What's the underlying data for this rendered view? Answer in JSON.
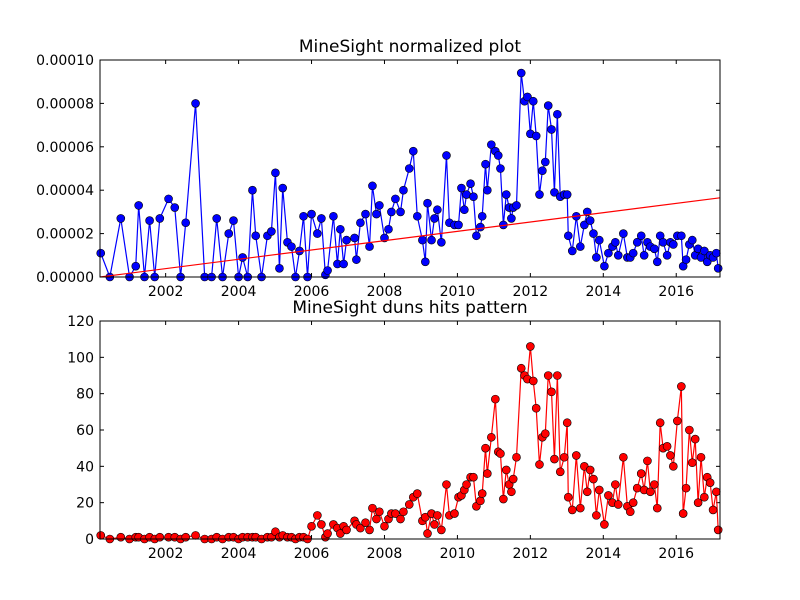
{
  "chart_data": [
    {
      "type": "line",
      "title": "MineSight normalized plot",
      "xlim": [
        2000.2,
        2017.2
      ],
      "xticks": [
        2002,
        2004,
        2006,
        2008,
        2010,
        2012,
        2014,
        2016
      ],
      "ylim": [
        0,
        0.0001
      ],
      "yticks": [
        {
          "value": 0,
          "label": "0.00000"
        },
        {
          "value": 2e-05,
          "label": "0.00002"
        },
        {
          "value": 4e-05,
          "label": "0.00004"
        },
        {
          "value": 6e-05,
          "label": "0.00006"
        },
        {
          "value": 8e-05,
          "label": "0.00008"
        },
        {
          "value": 0.0001,
          "label": "0.00010"
        }
      ],
      "x": [
        2000.22,
        2000.47,
        2000.77,
        2001.01,
        2001.18,
        2001.26,
        2001.42,
        2001.56,
        2001.7,
        2001.84,
        2002.08,
        2002.25,
        2002.41,
        2002.55,
        2002.82,
        2003.07,
        2003.26,
        2003.4,
        2003.56,
        2003.73,
        2003.86,
        2004.0,
        2004.11,
        2004.25,
        2004.38,
        2004.47,
        2004.63,
        2004.79,
        2004.9,
        2005.01,
        2005.12,
        2005.21,
        2005.34,
        2005.45,
        2005.56,
        2005.67,
        2005.78,
        2005.89,
        2006.0,
        2006.16,
        2006.27,
        2006.38,
        2006.44,
        2006.6,
        2006.71,
        2006.79,
        2006.88,
        2006.96,
        2007.18,
        2007.23,
        2007.34,
        2007.48,
        2007.59,
        2007.67,
        2007.78,
        2007.86,
        2008.0,
        2008.11,
        2008.19,
        2008.3,
        2008.44,
        2008.52,
        2008.68,
        2008.79,
        2008.9,
        2009.04,
        2009.12,
        2009.18,
        2009.29,
        2009.37,
        2009.45,
        2009.56,
        2009.7,
        2009.78,
        2009.92,
        2010.03,
        2010.11,
        2010.19,
        2010.25,
        2010.36,
        2010.44,
        2010.52,
        2010.63,
        2010.68,
        2010.77,
        2010.82,
        2010.93,
        2011.04,
        2011.12,
        2011.18,
        2011.26,
        2011.34,
        2011.42,
        2011.48,
        2011.53,
        2011.62,
        2011.75,
        2011.84,
        2011.92,
        2012.0,
        2012.08,
        2012.16,
        2012.25,
        2012.33,
        2012.41,
        2012.49,
        2012.58,
        2012.66,
        2012.74,
        2012.82,
        2012.93,
        2013.01,
        2013.04,
        2013.15,
        2013.26,
        2013.37,
        2013.48,
        2013.56,
        2013.64,
        2013.73,
        2013.81,
        2013.89,
        2014.03,
        2014.14,
        2014.25,
        2014.33,
        2014.41,
        2014.55,
        2014.66,
        2014.74,
        2014.82,
        2014.93,
        2015.04,
        2015.12,
        2015.21,
        2015.29,
        2015.4,
        2015.48,
        2015.56,
        2015.64,
        2015.75,
        2015.84,
        2015.92,
        2016.03,
        2016.14,
        2016.19,
        2016.27,
        2016.36,
        2016.44,
        2016.52,
        2016.6,
        2016.68,
        2016.77,
        2016.85,
        2016.93,
        2017.01,
        2017.1,
        2017.15
      ],
      "series": [
        {
          "color": "#0000ff",
          "markers": true,
          "values": [
            1.1e-05,
            0,
            2.7e-05,
            0,
            5e-06,
            3.3e-05,
            0,
            2.6e-05,
            0,
            2.7e-05,
            3.6e-05,
            3.2e-05,
            0,
            2.5e-05,
            8e-05,
            0,
            0,
            2.7e-05,
            0,
            2e-05,
            2.6e-05,
            0,
            9e-06,
            0,
            4e-05,
            1.9e-05,
            0,
            1.9e-05,
            2.1e-05,
            4.8e-05,
            4e-06,
            4.1e-05,
            1.6e-05,
            1.4e-05,
            0,
            1.2e-05,
            2.8e-05,
            0,
            2.9e-05,
            2e-05,
            2.7e-05,
            1e-06,
            3e-06,
            2.8e-05,
            6e-06,
            2.2e-05,
            6e-06,
            1.7e-05,
            1.8e-05,
            8e-06,
            2.5e-05,
            2.9e-05,
            1.4e-05,
            4.2e-05,
            2.9e-05,
            3.3e-05,
            1.8e-05,
            2.2e-05,
            3e-05,
            3.6e-05,
            3e-05,
            4e-05,
            5e-05,
            5.8e-05,
            2.8e-05,
            1.7e-05,
            7e-06,
            3.4e-05,
            1.7e-05,
            2.7e-05,
            3.1e-05,
            1.6e-05,
            5.6e-05,
            2.5e-05,
            2.4e-05,
            2.4e-05,
            4.1e-05,
            3.1e-05,
            3.8e-05,
            4.3e-05,
            3.7e-05,
            1.9e-05,
            2.3e-05,
            2.8e-05,
            5.2e-05,
            4e-05,
            6.1e-05,
            5.8e-05,
            5.6e-05,
            5e-05,
            2.4e-05,
            3.8e-05,
            3.2e-05,
            2.7e-05,
            3.2e-05,
            3.3e-05,
            9.4e-05,
            8.1e-05,
            8.3e-05,
            6.6e-05,
            8.1e-05,
            6.5e-05,
            3.8e-05,
            4.9e-05,
            5.3e-05,
            7.9e-05,
            6.8e-05,
            3.9e-05,
            7.5e-05,
            3.7e-05,
            3.8e-05,
            3.8e-05,
            1.9e-05,
            1.2e-05,
            2.8e-05,
            1.4e-05,
            2.4e-05,
            3e-05,
            2.6e-05,
            2e-05,
            9e-06,
            1.7e-05,
            5e-06,
            1.1e-05,
            1.4e-05,
            1.6e-05,
            1e-05,
            2e-05,
            9e-06,
            9e-06,
            1.1e-05,
            1.6e-05,
            1.9e-05,
            1e-05,
            1.6e-05,
            1.4e-05,
            1.3e-05,
            7e-06,
            1.9e-05,
            1.6e-05,
            1e-05,
            1.6e-05,
            1.5e-05,
            1.9e-05,
            1.9e-05,
            5e-06,
            8e-06,
            1.5e-05,
            1.7e-05,
            1e-05,
            1.3e-05,
            9e-06,
            1.2e-05,
            7e-06,
            1e-05,
            9e-06,
            1.1e-05,
            4e-06
          ]
        },
        {
          "color": "#ff0000",
          "markers": false,
          "x": [
            2000.2,
            2017.2
          ],
          "values": [
            0,
            3.65e-05
          ]
        }
      ]
    },
    {
      "type": "line",
      "title": "MineSight duns hits pattern",
      "xlim": [
        2000.2,
        2017.2
      ],
      "xticks": [
        2002,
        2004,
        2006,
        2008,
        2010,
        2012,
        2014,
        2016
      ],
      "ylim": [
        0,
        120
      ],
      "yticks": [
        0,
        20,
        40,
        60,
        80,
        100,
        120
      ],
      "x": [
        2000.22,
        2000.47,
        2000.77,
        2001.01,
        2001.18,
        2001.26,
        2001.42,
        2001.56,
        2001.7,
        2001.84,
        2002.08,
        2002.25,
        2002.41,
        2002.55,
        2002.82,
        2003.07,
        2003.26,
        2003.4,
        2003.56,
        2003.73,
        2003.86,
        2004.0,
        2004.11,
        2004.25,
        2004.38,
        2004.47,
        2004.63,
        2004.79,
        2004.9,
        2005.01,
        2005.12,
        2005.21,
        2005.34,
        2005.45,
        2005.56,
        2005.67,
        2005.78,
        2005.89,
        2006.0,
        2006.16,
        2006.27,
        2006.38,
        2006.44,
        2006.6,
        2006.71,
        2006.79,
        2006.88,
        2006.96,
        2007.18,
        2007.23,
        2007.34,
        2007.48,
        2007.59,
        2007.67,
        2007.78,
        2007.86,
        2008.0,
        2008.11,
        2008.19,
        2008.3,
        2008.44,
        2008.52,
        2008.68,
        2008.79,
        2008.9,
        2009.04,
        2009.12,
        2009.18,
        2009.29,
        2009.37,
        2009.45,
        2009.56,
        2009.7,
        2009.78,
        2009.92,
        2010.03,
        2010.11,
        2010.19,
        2010.25,
        2010.36,
        2010.44,
        2010.52,
        2010.63,
        2010.68,
        2010.77,
        2010.82,
        2010.93,
        2011.04,
        2011.12,
        2011.18,
        2011.26,
        2011.34,
        2011.42,
        2011.48,
        2011.53,
        2011.62,
        2011.75,
        2011.84,
        2011.92,
        2012.0,
        2012.08,
        2012.16,
        2012.25,
        2012.33,
        2012.41,
        2012.49,
        2012.58,
        2012.66,
        2012.74,
        2012.82,
        2012.93,
        2013.01,
        2013.04,
        2013.15,
        2013.26,
        2013.37,
        2013.48,
        2013.56,
        2013.64,
        2013.73,
        2013.81,
        2013.89,
        2014.03,
        2014.14,
        2014.25,
        2014.33,
        2014.41,
        2014.55,
        2014.66,
        2014.74,
        2014.82,
        2014.93,
        2015.04,
        2015.12,
        2015.21,
        2015.29,
        2015.4,
        2015.48,
        2015.56,
        2015.64,
        2015.75,
        2015.84,
        2015.92,
        2016.03,
        2016.14,
        2016.19,
        2016.27,
        2016.36,
        2016.44,
        2016.52,
        2016.6,
        2016.68,
        2016.77,
        2016.85,
        2016.93,
        2017.01,
        2017.1,
        2017.15
      ],
      "series": [
        {
          "color": "#ff0000",
          "markers": true,
          "values": [
            2,
            0,
            1,
            0,
            1,
            1,
            0,
            1,
            0,
            1,
            1,
            1,
            0,
            1,
            2,
            0,
            0,
            1,
            0,
            1,
            1,
            0,
            1,
            1,
            1,
            1,
            0,
            1,
            1,
            4,
            1,
            2,
            1,
            1,
            0,
            1,
            1,
            0,
            7,
            13,
            8,
            1,
            3,
            8,
            6,
            3,
            7,
            5,
            10,
            8,
            6,
            9,
            5,
            17,
            11,
            15,
            7,
            11,
            14,
            14,
            11,
            15,
            19,
            23,
            25,
            10,
            12,
            3,
            14,
            8,
            13,
            5,
            30,
            13,
            14,
            23,
            24,
            27,
            30,
            34,
            34,
            18,
            21,
            25,
            50,
            36,
            56,
            77,
            48,
            47,
            22,
            38,
            30,
            26,
            33,
            45,
            94,
            90,
            88,
            106,
            87,
            72,
            41,
            56,
            58,
            90,
            81,
            44,
            90,
            37,
            45,
            64,
            23,
            16,
            46,
            17,
            40,
            26,
            38,
            33,
            13,
            27,
            8,
            24,
            20,
            30,
            19,
            45,
            18,
            15,
            20,
            28,
            36,
            27,
            43,
            26,
            30,
            17,
            64,
            50,
            51,
            46,
            40,
            65,
            84,
            14,
            28,
            60,
            42,
            55,
            20,
            45,
            23,
            34,
            31,
            16,
            26,
            5
          ]
        }
      ]
    }
  ]
}
